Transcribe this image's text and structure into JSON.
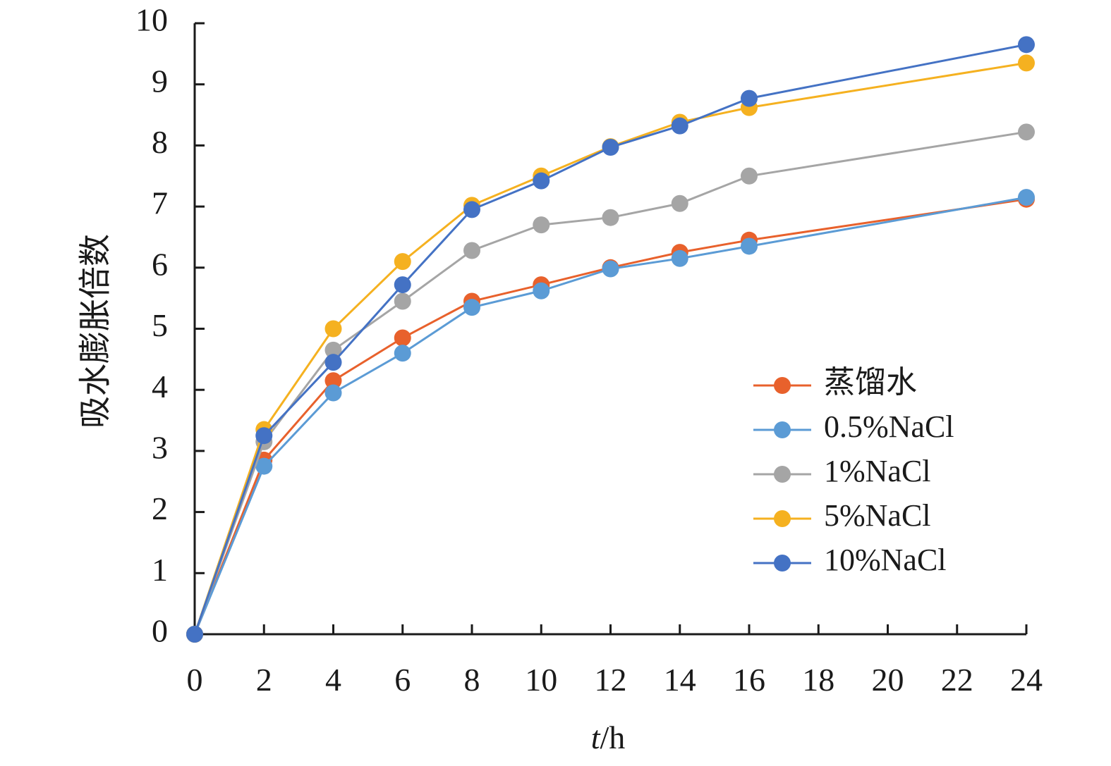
{
  "chart_data": {
    "type": "line",
    "title": "",
    "xlabel_italic": "t",
    "xlabel_unit": "/h",
    "ylabel": "吸水膨胀倍数",
    "xlim": [
      0,
      24
    ],
    "ylim": [
      0,
      10
    ],
    "xticks": [
      "0",
      "2",
      "4",
      "6",
      "8",
      "10",
      "12",
      "14",
      "16",
      "18",
      "20",
      "22",
      "24"
    ],
    "yticks": [
      "0",
      "1",
      "2",
      "3",
      "4",
      "5",
      "6",
      "7",
      "8",
      "9",
      "10"
    ],
    "grid": false,
    "legend_position": "lower-right",
    "series": [
      {
        "name": "蒸馏水",
        "color": "#E8612C",
        "x": [
          0,
          2,
          4,
          6,
          8,
          10,
          12,
          14,
          16,
          24
        ],
        "y": [
          0,
          2.85,
          4.15,
          4.85,
          5.45,
          5.72,
          6.0,
          6.25,
          6.45,
          7.12
        ]
      },
      {
        "name": "0.5%NaCl",
        "color": "#5B9BD5",
        "x": [
          0,
          2,
          4,
          6,
          8,
          10,
          12,
          14,
          16,
          24
        ],
        "y": [
          0,
          2.75,
          3.95,
          4.6,
          5.35,
          5.62,
          5.98,
          6.15,
          6.35,
          7.15
        ]
      },
      {
        "name": "1%NaCl",
        "color": "#A5A5A5",
        "x": [
          0,
          2,
          4,
          6,
          8,
          10,
          12,
          14,
          16,
          24
        ],
        "y": [
          0,
          3.15,
          4.65,
          5.45,
          6.28,
          6.7,
          6.82,
          7.05,
          7.5,
          8.22
        ]
      },
      {
        "name": "5%NaCl",
        "color": "#F5B120",
        "x": [
          0,
          2,
          4,
          6,
          8,
          10,
          12,
          14,
          16,
          24
        ],
        "y": [
          0,
          3.35,
          5.0,
          6.1,
          7.02,
          7.5,
          7.98,
          8.38,
          8.62,
          9.35
        ]
      },
      {
        "name": "10%NaCl",
        "color": "#4472C4",
        "x": [
          0,
          2,
          4,
          6,
          8,
          10,
          12,
          14,
          16,
          24
        ],
        "y": [
          0,
          3.25,
          4.45,
          5.72,
          6.95,
          7.42,
          7.97,
          8.32,
          8.77,
          9.65
        ]
      }
    ]
  }
}
